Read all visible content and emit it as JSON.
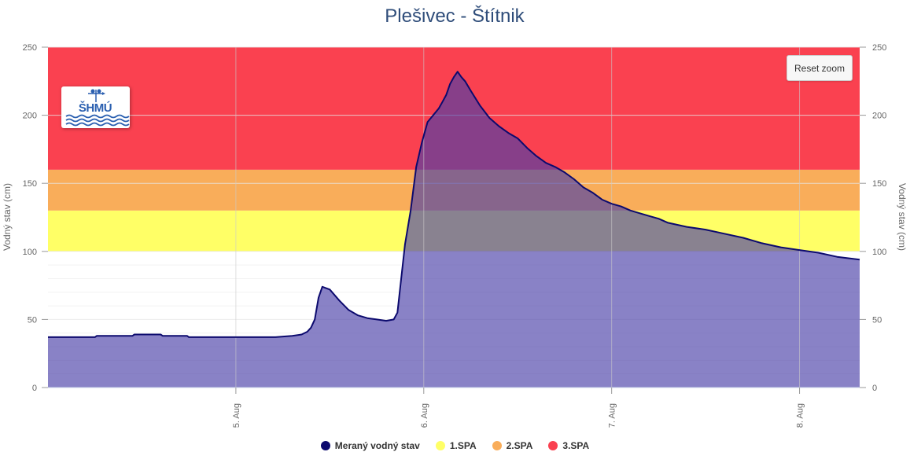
{
  "chart_data": {
    "type": "area",
    "title": "Plešivec - Štítnik",
    "ylabel": "Vodný stav (cm)",
    "ylabel_right": "Vodný stav (cm)",
    "ylim": [
      0,
      250
    ],
    "yticks": [
      "0",
      "50",
      "100",
      "150",
      "200",
      "250"
    ],
    "xlim": [
      4.0,
      8.32
    ],
    "xticks": [
      {
        "value": 5,
        "label": "5. Aug"
      },
      {
        "value": 6,
        "label": "6. Aug"
      },
      {
        "value": 7,
        "label": "7. Aug"
      },
      {
        "value": 8,
        "label": "8. Aug"
      }
    ],
    "thresholds": [
      {
        "name": "1.SPA",
        "from": 100,
        "to": 130,
        "color": "#ffff66"
      },
      {
        "name": "2.SPA",
        "from": 130,
        "to": 160,
        "color": "#f9ad5a"
      },
      {
        "name": "3.SPA",
        "from": 160,
        "to": 250,
        "color": "#fa4150"
      }
    ],
    "grid": true,
    "legend_position": "bottom-center",
    "series": [
      {
        "name": "Meraný vodný stav",
        "color": "#0c0a6e",
        "fill_color": "#4a3fa8",
        "x": [
          4.0,
          4.25,
          4.26,
          4.45,
          4.46,
          4.6,
          4.61,
          4.74,
          4.75,
          5.2,
          5.21,
          5.3,
          5.35,
          5.38,
          5.4,
          5.42,
          5.44,
          5.46,
          5.5,
          5.55,
          5.6,
          5.65,
          5.7,
          5.75,
          5.8,
          5.84,
          5.86,
          5.88,
          5.9,
          5.93,
          5.96,
          5.99,
          6.02,
          6.05,
          6.08,
          6.1,
          6.12,
          6.14,
          6.16,
          6.18,
          6.2,
          6.22,
          6.25,
          6.3,
          6.35,
          6.4,
          6.45,
          6.5,
          6.55,
          6.6,
          6.65,
          6.7,
          6.75,
          6.8,
          6.85,
          6.9,
          6.95,
          7.0,
          7.05,
          7.1,
          7.15,
          7.2,
          7.25,
          7.3,
          7.4,
          7.5,
          7.6,
          7.7,
          7.8,
          7.9,
          8.0,
          8.1,
          8.2,
          8.32
        ],
        "values": [
          37,
          37,
          38,
          38,
          39,
          39,
          38,
          38,
          37,
          37,
          37,
          38,
          39,
          41,
          44,
          50,
          66,
          74,
          72,
          64,
          57,
          53,
          51,
          50,
          49,
          50,
          55,
          80,
          105,
          130,
          162,
          180,
          195,
          200,
          205,
          210,
          215,
          223,
          228,
          232,
          228,
          225,
          218,
          207,
          198,
          192,
          187,
          183,
          176,
          170,
          165,
          162,
          158,
          153,
          147,
          143,
          138,
          135,
          133,
          130,
          128,
          126,
          124,
          121,
          118,
          116,
          113,
          110,
          106,
          103,
          101,
          99,
          96,
          94
        ]
      }
    ]
  },
  "legend": [
    {
      "label": "Meraný vodný stav",
      "color": "#0c0a6e"
    },
    {
      "label": "1.SPA",
      "color": "#ffff66"
    },
    {
      "label": "2.SPA",
      "color": "#f9ad5a"
    },
    {
      "label": "3.SPA",
      "color": "#fa4150"
    }
  ],
  "buttons": {
    "reset_zoom": "Reset zoom"
  },
  "logo": {
    "text": "SHMÚ",
    "icon": "shmu-logo"
  }
}
